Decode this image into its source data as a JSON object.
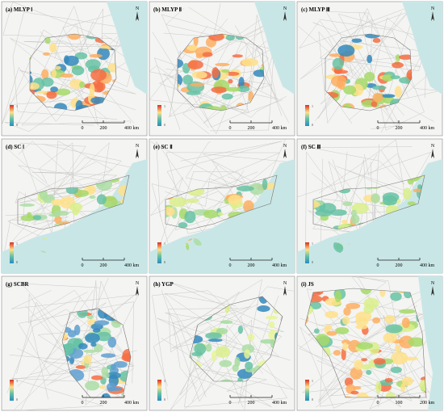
{
  "panels": [
    {
      "label": "(a) MLYP Ⅰ",
      "scale": [
        "0",
        "200",
        "400 km"
      ],
      "legend": [
        "1",
        "0"
      ]
    },
    {
      "label": "(b) MLYP Ⅱ",
      "scale": [
        "0",
        "200",
        "400 km"
      ],
      "legend": [
        "1",
        "0"
      ]
    },
    {
      "label": "(c) MLYP Ⅲ",
      "scale": [
        "0",
        "200",
        "400 km"
      ],
      "legend": [
        "1",
        "0"
      ]
    },
    {
      "label": "(d) SC Ⅰ",
      "scale": [
        "0",
        "200",
        "400 km"
      ],
      "legend": [
        "1",
        "0"
      ]
    },
    {
      "label": "(e) SC Ⅱ",
      "scale": [
        "0",
        "200",
        "400 km"
      ],
      "legend": [
        "1",
        "0"
      ]
    },
    {
      "label": "(f) SC Ⅲ",
      "scale": [
        "0",
        "200",
        "400 km"
      ],
      "legend": [
        "1",
        "0"
      ]
    },
    {
      "label": "(g) SCBR",
      "scale": [
        "0",
        "200",
        "400 km"
      ],
      "legend": [
        "1",
        "0"
      ]
    },
    {
      "label": "(h) YGP",
      "scale": [
        "0",
        "200",
        "400 km"
      ],
      "legend": [
        "1",
        "0"
      ]
    },
    {
      "label": "(i) JS",
      "scale": [
        "0",
        "100",
        "200 km"
      ],
      "legend": [
        "1",
        "0"
      ]
    }
  ],
  "north": "N"
}
